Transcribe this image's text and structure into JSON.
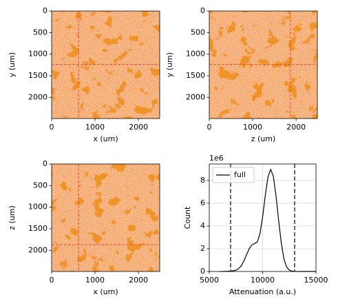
{
  "chart_data": [
    {
      "type": "image",
      "xlabel": "x (um)",
      "ylabel": "y (um)",
      "xlim": [
        0,
        2490
      ],
      "ylim": [
        2490,
        0
      ],
      "xticks": [
        0,
        1000,
        2000
      ],
      "yticks": [
        0,
        500,
        1000,
        1500,
        2000
      ],
      "crosshair": {
        "x": 620,
        "y": 1240
      },
      "crosshair_color": "#e8322a"
    },
    {
      "type": "image",
      "xlabel": "z (um)",
      "ylabel": "y (um)",
      "xlim": [
        0,
        2490
      ],
      "ylim": [
        2490,
        0
      ],
      "xticks": [
        0,
        1000,
        2000
      ],
      "yticks": [
        0,
        500,
        1000,
        1500,
        2000
      ],
      "crosshair": {
        "x": 1870,
        "y": 1240
      },
      "crosshair_color": "#e8322a"
    },
    {
      "type": "image",
      "xlabel": "x (um)",
      "ylabel": "z (um)",
      "xlim": [
        0,
        2490
      ],
      "ylim": [
        2490,
        0
      ],
      "xticks": [
        0,
        1000,
        2000
      ],
      "yticks": [
        0,
        500,
        1000,
        1500,
        2000
      ],
      "crosshair": {
        "x": 620,
        "y": 1870
      },
      "crosshair_color": "#e8322a"
    },
    {
      "type": "line",
      "xlabel": "Attenuation (a.u.)",
      "ylabel": "Count",
      "offset_label": "1e6",
      "xlim": [
        5000,
        15000
      ],
      "ylim": [
        0,
        9.45
      ],
      "xticks": [
        5000,
        10000,
        15000
      ],
      "yticks": [
        0,
        2,
        4,
        6,
        8
      ],
      "grid": true,
      "legend": "upper left",
      "x": [
        6000,
        6500,
        7000,
        7250,
        7500,
        7750,
        8000,
        8250,
        8500,
        8750,
        9000,
        9250,
        9500,
        9750,
        10000,
        10250,
        10500,
        10750,
        11000,
        11250,
        11500,
        11750,
        12000,
        12250,
        12500,
        12750,
        13000,
        13500,
        14000,
        15000
      ],
      "series": [
        {
          "name": "full",
          "color": "#000000",
          "values": [
            0,
            0.01,
            0.03,
            0.06,
            0.12,
            0.25,
            0.5,
            0.95,
            1.5,
            2.0,
            2.35,
            2.45,
            2.6,
            3.3,
            4.8,
            6.7,
            8.3,
            8.97,
            8.4,
            6.7,
            4.5,
            2.5,
            1.1,
            0.4,
            0.12,
            0.03,
            0.01,
            0,
            0,
            0
          ]
        }
      ],
      "vlines": [
        7000,
        13000
      ],
      "vline_color": "#333333"
    }
  ]
}
